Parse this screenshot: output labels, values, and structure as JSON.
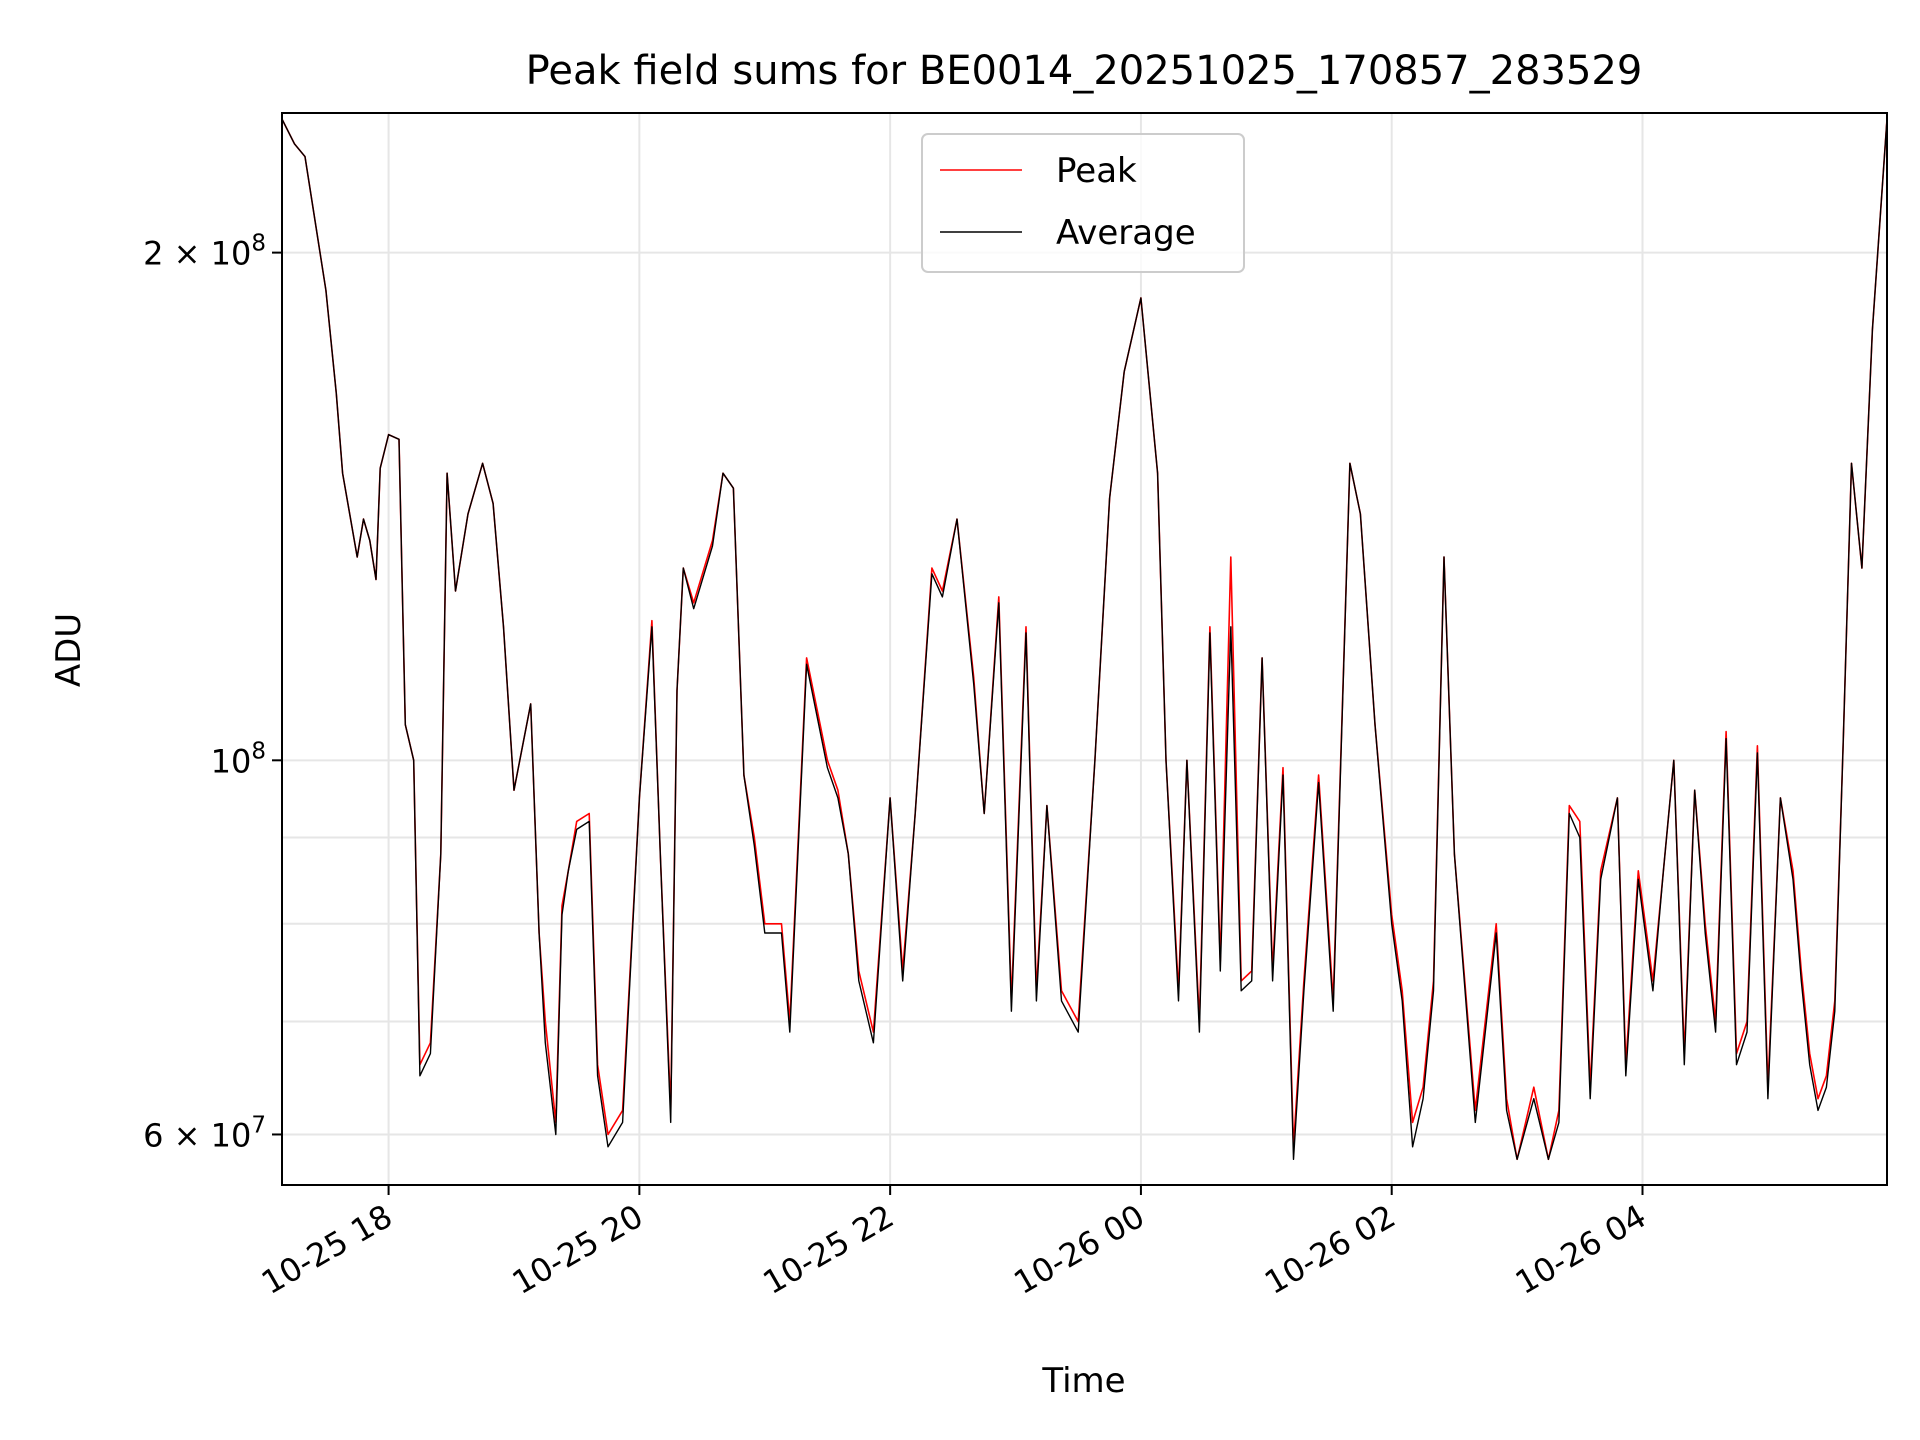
{
  "chart_data": {
    "type": "line",
    "title": "Peak field sums for BE0014_20251025_170857_283529",
    "xlabel": "Time",
    "ylabel": "ADU",
    "y_scale": "log",
    "xlim": [
      "2025-10-25 17:09",
      "2025-10-26 05:57"
    ],
    "ylim": [
      56000000,
      242000000
    ],
    "grid": true,
    "legend_position": "top-center",
    "x_ticks": [
      "2025-10-25 18:00",
      "2025-10-25 20:00",
      "2025-10-25 22:00",
      "2025-10-26 00:00",
      "2025-10-26 02:00",
      "2025-10-26 04:00"
    ],
    "x_tick_labels": [
      "10-25 18",
      "10-25 20",
      "10-25 22",
      "10-26 00",
      "10-26 02",
      "10-26 04"
    ],
    "y_ticks": [
      60000000,
      100000000,
      200000000
    ],
    "y_tick_labels": [
      {
        "mantissa": "6",
        "times": "×",
        "base": "10",
        "exp": "7"
      },
      {
        "mantissa": "",
        "times": "",
        "base": "10",
        "exp": "8"
      },
      {
        "mantissa": "2",
        "times": "×",
        "base": "10",
        "exp": "8"
      }
    ],
    "x": [
      "2025-10-25 17:09",
      "2025-10-25 17:15",
      "2025-10-25 17:20",
      "2025-10-25 17:30",
      "2025-10-25 17:35",
      "2025-10-25 17:38",
      "2025-10-25 17:45",
      "2025-10-25 17:48",
      "2025-10-25 17:51",
      "2025-10-25 17:54",
      "2025-10-25 17:56",
      "2025-10-25 18:00",
      "2025-10-25 18:05",
      "2025-10-25 18:08",
      "2025-10-25 18:12",
      "2025-10-25 18:15",
      "2025-10-25 18:20",
      "2025-10-25 18:25",
      "2025-10-25 18:28",
      "2025-10-25 18:32",
      "2025-10-25 18:38",
      "2025-10-25 18:45",
      "2025-10-25 18:50",
      "2025-10-25 18:55",
      "2025-10-25 19:00",
      "2025-10-25 19:08",
      "2025-10-25 19:12",
      "2025-10-25 19:15",
      "2025-10-25 19:20",
      "2025-10-25 19:23",
      "2025-10-25 19:26",
      "2025-10-25 19:30",
      "2025-10-25 19:36",
      "2025-10-25 19:40",
      "2025-10-25 19:45",
      "2025-10-25 19:52",
      "2025-10-25 20:00",
      "2025-10-25 20:06",
      "2025-10-25 20:10",
      "2025-10-25 20:15",
      "2025-10-25 20:18",
      "2025-10-25 20:21",
      "2025-10-25 20:26",
      "2025-10-25 20:35",
      "2025-10-25 20:40",
      "2025-10-25 20:45",
      "2025-10-25 20:50",
      "2025-10-25 20:55",
      "2025-10-25 21:00",
      "2025-10-25 21:08",
      "2025-10-25 21:12",
      "2025-10-25 21:20",
      "2025-10-25 21:30",
      "2025-10-25 21:35",
      "2025-10-25 21:40",
      "2025-10-25 21:45",
      "2025-10-25 21:52",
      "2025-10-25 22:00",
      "2025-10-25 22:06",
      "2025-10-25 22:12",
      "2025-10-25 22:20",
      "2025-10-25 22:25",
      "2025-10-25 22:32",
      "2025-10-25 22:40",
      "2025-10-25 22:45",
      "2025-10-25 22:52",
      "2025-10-25 22:58",
      "2025-10-25 23:05",
      "2025-10-25 23:10",
      "2025-10-25 23:15",
      "2025-10-25 23:22",
      "2025-10-25 23:30",
      "2025-10-25 23:38",
      "2025-10-25 23:45",
      "2025-10-25 23:52",
      "2025-10-26 00:00",
      "2025-10-26 00:08",
      "2025-10-26 00:12",
      "2025-10-26 00:18",
      "2025-10-26 00:22",
      "2025-10-26 00:28",
      "2025-10-26 00:33",
      "2025-10-26 00:38",
      "2025-10-26 00:43",
      "2025-10-26 00:48",
      "2025-10-26 00:53",
      "2025-10-26 00:58",
      "2025-10-26 01:03",
      "2025-10-26 01:08",
      "2025-10-26 01:13",
      "2025-10-26 01:18",
      "2025-10-26 01:25",
      "2025-10-26 01:32",
      "2025-10-26 01:40",
      "2025-10-26 01:45",
      "2025-10-26 01:52",
      "2025-10-26 02:00",
      "2025-10-26 02:05",
      "2025-10-26 02:10",
      "2025-10-26 02:15",
      "2025-10-26 02:20",
      "2025-10-26 02:25",
      "2025-10-26 02:30",
      "2025-10-26 02:40",
      "2025-10-26 02:50",
      "2025-10-26 02:55",
      "2025-10-26 03:00",
      "2025-10-26 03:08",
      "2025-10-26 03:15",
      "2025-10-26 03:20",
      "2025-10-26 03:25",
      "2025-10-26 03:30",
      "2025-10-26 03:35",
      "2025-10-26 03:40",
      "2025-10-26 03:48",
      "2025-10-26 03:52",
      "2025-10-26 03:58",
      "2025-10-26 04:05",
      "2025-10-26 04:10",
      "2025-10-26 04:15",
      "2025-10-26 04:20",
      "2025-10-26 04:25",
      "2025-10-26 04:30",
      "2025-10-26 04:35",
      "2025-10-26 04:40",
      "2025-10-26 04:45",
      "2025-10-26 04:50",
      "2025-10-26 04:55",
      "2025-10-26 05:00",
      "2025-10-26 05:06",
      "2025-10-26 05:12",
      "2025-10-26 05:16",
      "2025-10-26 05:20",
      "2025-10-26 05:24",
      "2025-10-26 05:28",
      "2025-10-26 05:32",
      "2025-10-26 05:36",
      "2025-10-26 05:40",
      "2025-10-26 05:45",
      "2025-10-26 05:50",
      "2025-10-26 05:57"
    ],
    "series": [
      {
        "name": "Peak",
        "color": "#ff0000",
        "values": [
          240000000,
          232000000,
          228000000,
          190000000,
          165000000,
          148000000,
          132000000,
          139000000,
          135000000,
          128000000,
          149000000,
          156000000,
          155000000,
          105000000,
          100000000,
          66000000,
          68000000,
          88000000,
          148000000,
          126000000,
          140000000,
          150000000,
          142000000,
          120000000,
          96000000,
          108000000,
          79000000,
          70000000,
          61000000,
          82000000,
          86000000,
          92000000,
          93000000,
          66000000,
          60000000,
          62000000,
          95000000,
          121000000,
          88000000,
          62000000,
          110000000,
          130000000,
          124000000,
          135000000,
          148000000,
          145000000,
          98000000,
          90000000,
          80000000,
          80000000,
          70000000,
          115000000,
          100000000,
          96000000,
          88000000,
          75000000,
          69000000,
          95000000,
          75000000,
          93000000,
          130000000,
          126000000,
          139000000,
          112000000,
          93000000,
          125000000,
          72000000,
          120000000,
          73000000,
          94000000,
          73000000,
          70000000,
          100000000,
          143000000,
          170000000,
          188000000,
          148000000,
          100000000,
          73000000,
          100000000,
          70000000,
          120000000,
          76000000,
          132000000,
          74000000,
          75000000,
          115000000,
          75000000,
          99000000,
          59000000,
          74000000,
          98000000,
          72000000,
          150000000,
          140000000,
          105000000,
          81000000,
          73000000,
          61000000,
          64000000,
          74000000,
          132000000,
          88000000,
          62000000,
          80000000,
          63000000,
          58000000,
          64000000,
          58000000,
          62000000,
          94000000,
          92000000,
          64000000,
          86000000,
          95000000,
          66000000,
          86000000,
          74000000,
          86000000,
          100000000,
          67000000,
          96000000,
          80000000,
          70000000,
          104000000,
          67000000,
          70000000,
          102000000,
          64000000,
          95000000,
          86000000,
          75000000,
          67000000,
          63000000,
          65000000,
          72000000,
          102000000,
          150000000,
          130000000,
          180000000,
          240000000
        ]
      },
      {
        "name": "Average",
        "color": "#000000",
        "values": [
          240000000,
          232000000,
          228000000,
          190000000,
          165000000,
          148000000,
          132000000,
          139000000,
          135000000,
          128000000,
          149000000,
          156000000,
          155000000,
          105000000,
          100000000,
          65000000,
          67000000,
          88000000,
          148000000,
          126000000,
          140000000,
          150000000,
          142000000,
          120000000,
          96000000,
          108000000,
          79000000,
          68000000,
          60000000,
          81000000,
          86000000,
          91000000,
          92000000,
          65000000,
          59000000,
          61000000,
          95000000,
          120000000,
          88000000,
          61000000,
          110000000,
          130000000,
          123000000,
          134000000,
          148000000,
          145000000,
          98000000,
          89000000,
          79000000,
          79000000,
          69000000,
          114000000,
          99000000,
          95000000,
          88000000,
          74000000,
          68000000,
          95000000,
          74000000,
          93000000,
          129000000,
          125000000,
          139000000,
          111000000,
          93000000,
          124000000,
          71000000,
          119000000,
          72000000,
          94000000,
          72000000,
          69000000,
          100000000,
          143000000,
          170000000,
          188000000,
          148000000,
          100000000,
          72000000,
          100000000,
          69000000,
          119000000,
          75000000,
          120000000,
          73000000,
          74000000,
          115000000,
          74000000,
          98000000,
          58000000,
          73000000,
          97000000,
          71000000,
          150000000,
          140000000,
          105000000,
          80000000,
          72000000,
          59000000,
          63000000,
          73000000,
          132000000,
          88000000,
          61000000,
          79000000,
          62000000,
          58000000,
          63000000,
          58000000,
          61000000,
          93000000,
          90000000,
          63000000,
          85000000,
          95000000,
          65000000,
          85000000,
          73000000,
          86000000,
          100000000,
          66000000,
          96000000,
          79000000,
          69000000,
          103000000,
          66000000,
          69000000,
          101000000,
          63000000,
          95000000,
          85000000,
          74000000,
          66000000,
          62000000,
          64000000,
          71000000,
          102000000,
          150000000,
          130000000,
          180000000,
          240000000
        ]
      }
    ]
  }
}
